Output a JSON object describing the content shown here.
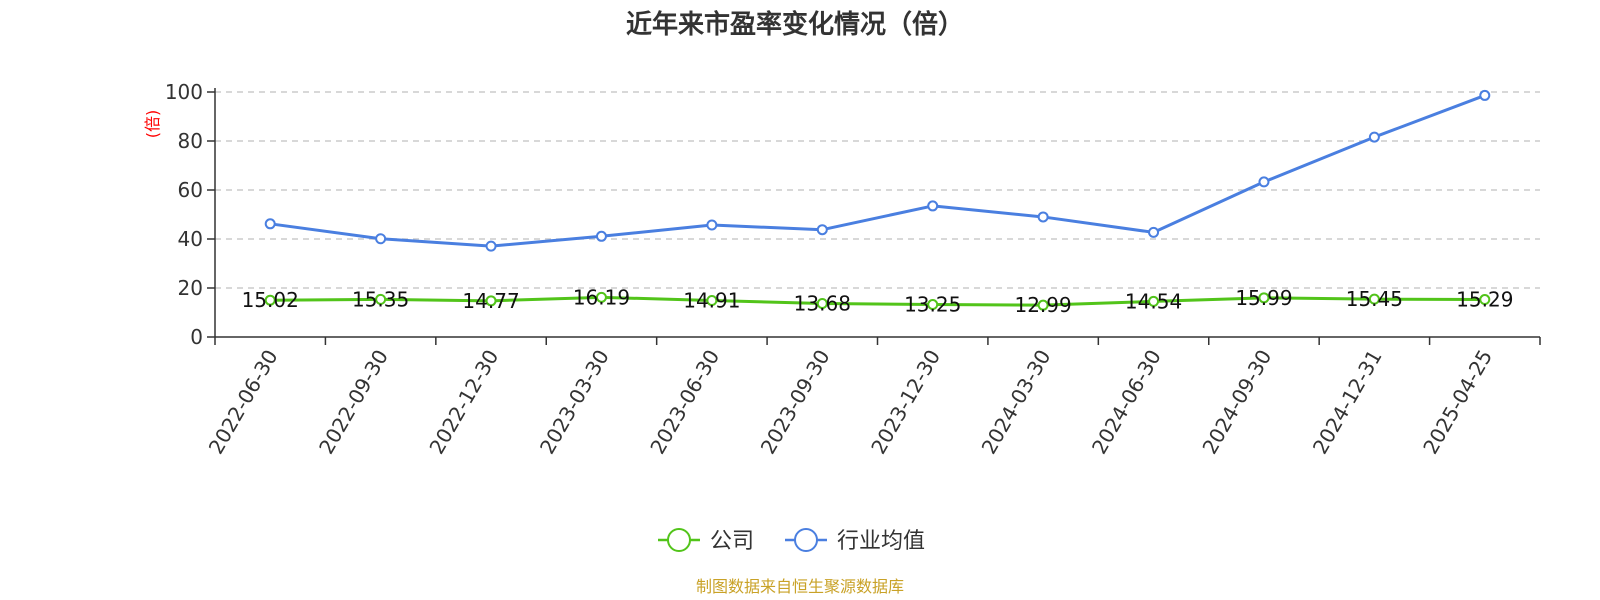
{
  "chart_data": {
    "type": "line",
    "title": "近年来市盈率变化情况（倍）",
    "ylabel": "(倍)",
    "xlabel": "",
    "ylim": [
      0,
      100
    ],
    "yticks": [
      0,
      20,
      40,
      60,
      80,
      100
    ],
    "grid": true,
    "legend_position": "bottom",
    "categories": [
      "2022-06-30",
      "2022-09-30",
      "2022-12-30",
      "2023-03-30",
      "2023-06-30",
      "2023-09-30",
      "2023-12-30",
      "2024-03-30",
      "2024-06-30",
      "2024-09-30",
      "2024-12-31",
      "2025-04-25"
    ],
    "series": [
      {
        "name": "公司",
        "color": "#52c41a",
        "values": [
          15.02,
          15.35,
          14.77,
          16.19,
          14.91,
          13.68,
          13.25,
          12.99,
          14.54,
          15.99,
          15.45,
          15.29
        ],
        "value_labels": [
          "15.02",
          "15.35",
          "14.77",
          "16.19",
          "14.91",
          "13.68",
          "13.25",
          "12.99",
          "14.54",
          "15.99",
          "15.45",
          "15.29"
        ]
      },
      {
        "name": "行业均值",
        "color": "#4a7fe0",
        "values": [
          46.2,
          40.1,
          37.1,
          41.1,
          45.7,
          43.8,
          53.5,
          49.0,
          42.7,
          63.3,
          81.6,
          98.6
        ]
      }
    ]
  },
  "footer": {
    "source": "制图数据来自恒生聚源数据库"
  }
}
